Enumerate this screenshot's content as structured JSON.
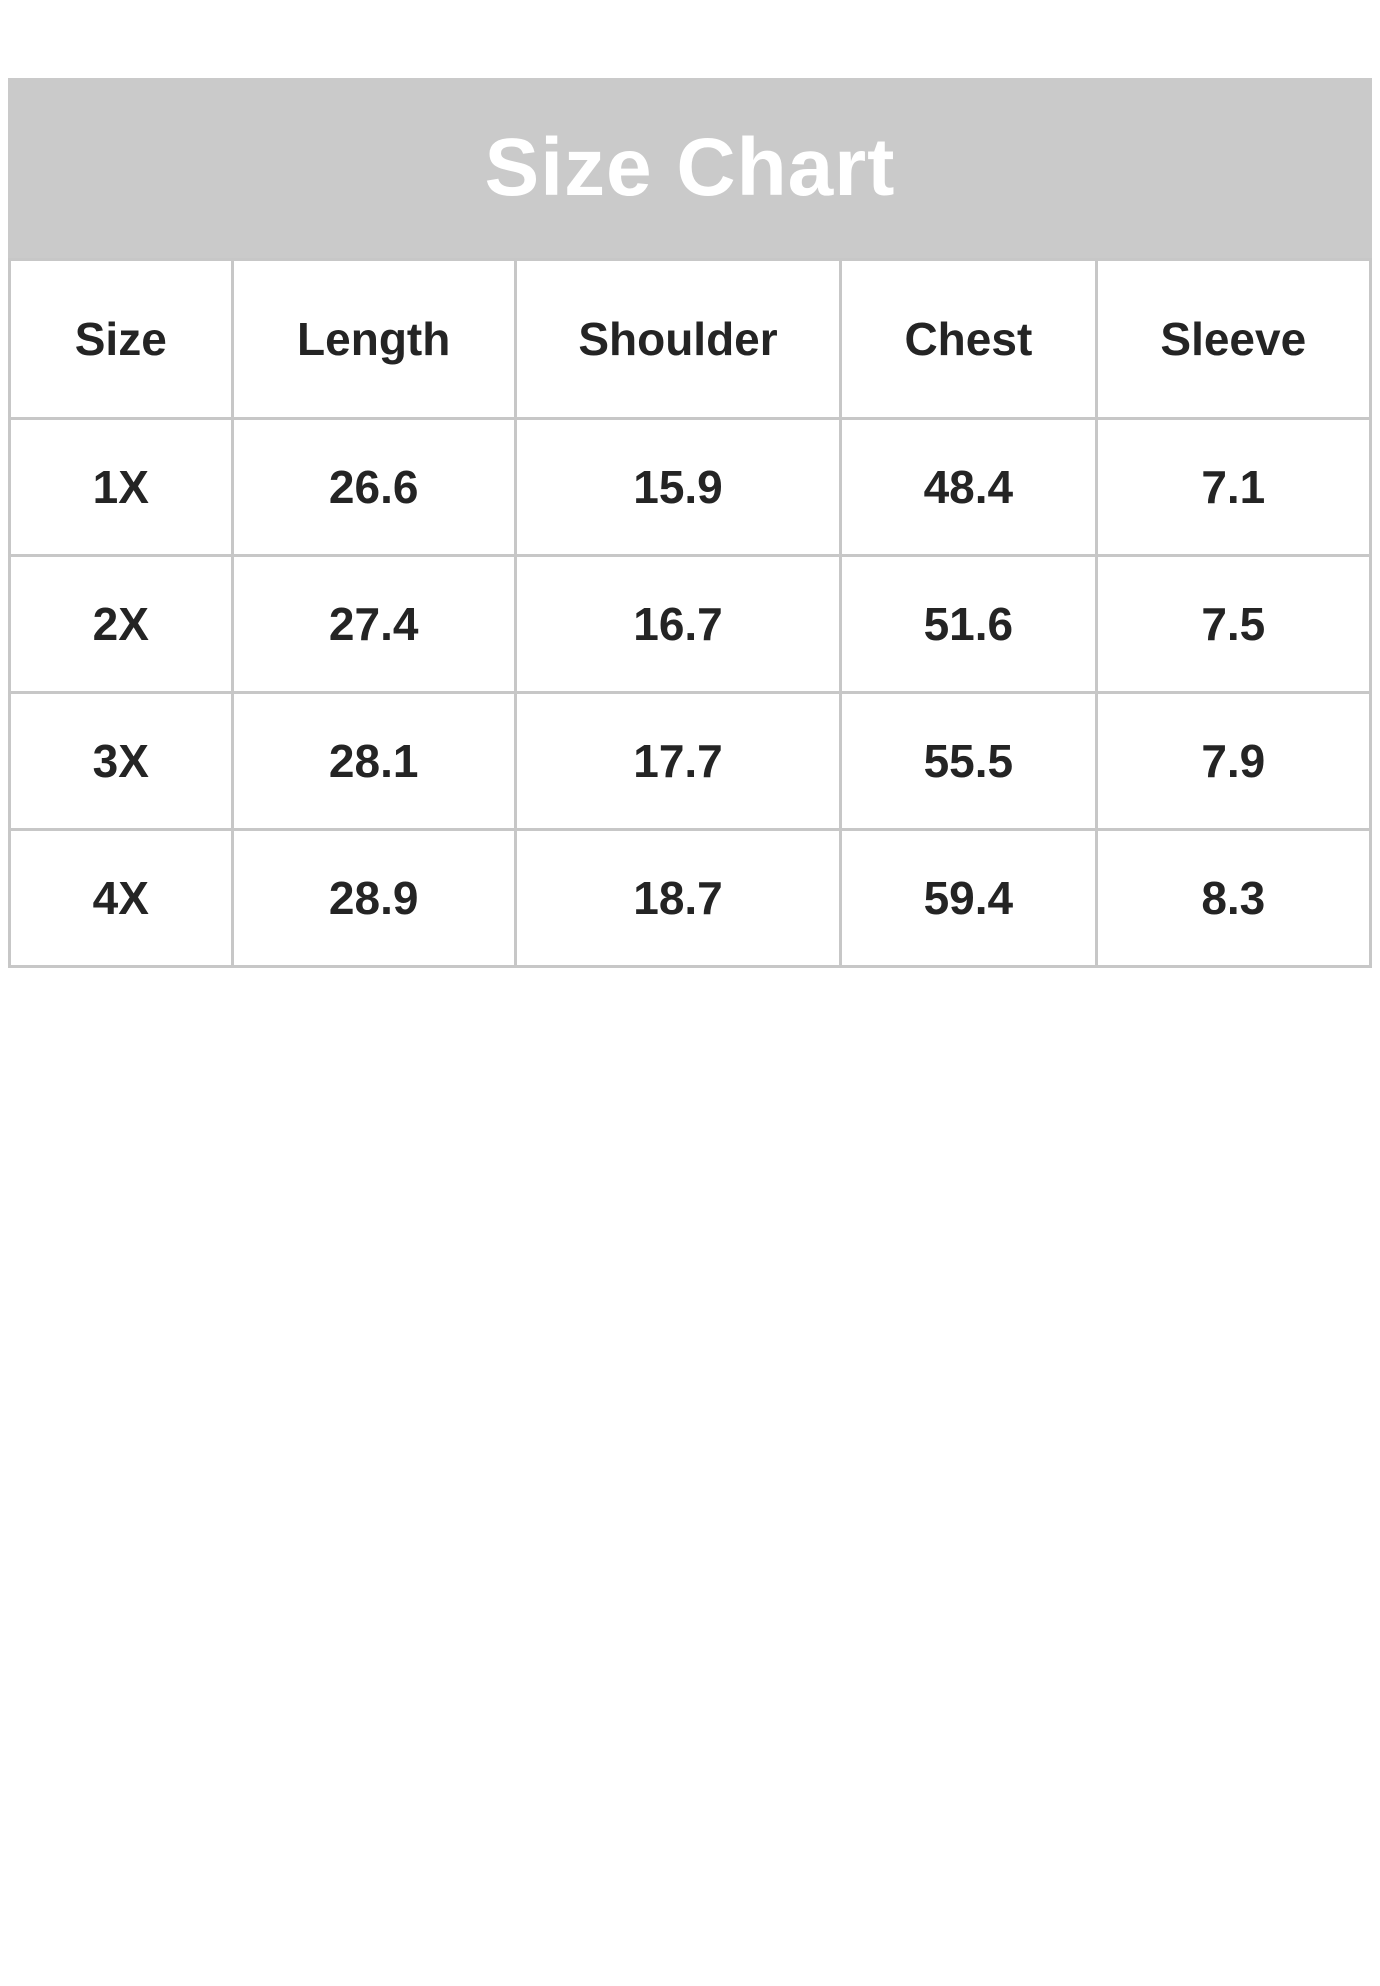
{
  "banner": {
    "title": "Size Chart",
    "bg_color": "#cacaca",
    "text_color": "#ffffff"
  },
  "table": {
    "border_color": "#c7c7c7",
    "text_color": "#242424",
    "columns": [
      "Size",
      "Length",
      "Shoulder",
      "Chest",
      "Sleeve"
    ],
    "rows": [
      [
        "1X",
        "26.6",
        "15.9",
        "48.4",
        "7.1"
      ],
      [
        "2X",
        "27.4",
        "16.7",
        "51.6",
        "7.5"
      ],
      [
        "3X",
        "28.1",
        "17.7",
        "55.5",
        "7.9"
      ],
      [
        "4X",
        "28.9",
        "18.7",
        "59.4",
        "8.3"
      ]
    ]
  },
  "chart_data": {
    "type": "table",
    "title": "Size Chart",
    "columns": [
      "Size",
      "Length",
      "Shoulder",
      "Chest",
      "Sleeve"
    ],
    "rows": [
      {
        "Size": "1X",
        "Length": 26.6,
        "Shoulder": 15.9,
        "Chest": 48.4,
        "Sleeve": 7.1
      },
      {
        "Size": "2X",
        "Length": 27.4,
        "Shoulder": 16.7,
        "Chest": 51.6,
        "Sleeve": 7.5
      },
      {
        "Size": "3X",
        "Length": 28.1,
        "Shoulder": 17.7,
        "Chest": 55.5,
        "Sleeve": 7.9
      },
      {
        "Size": "4X",
        "Length": 28.9,
        "Shoulder": 18.7,
        "Chest": 59.4,
        "Sleeve": 8.3
      }
    ]
  }
}
